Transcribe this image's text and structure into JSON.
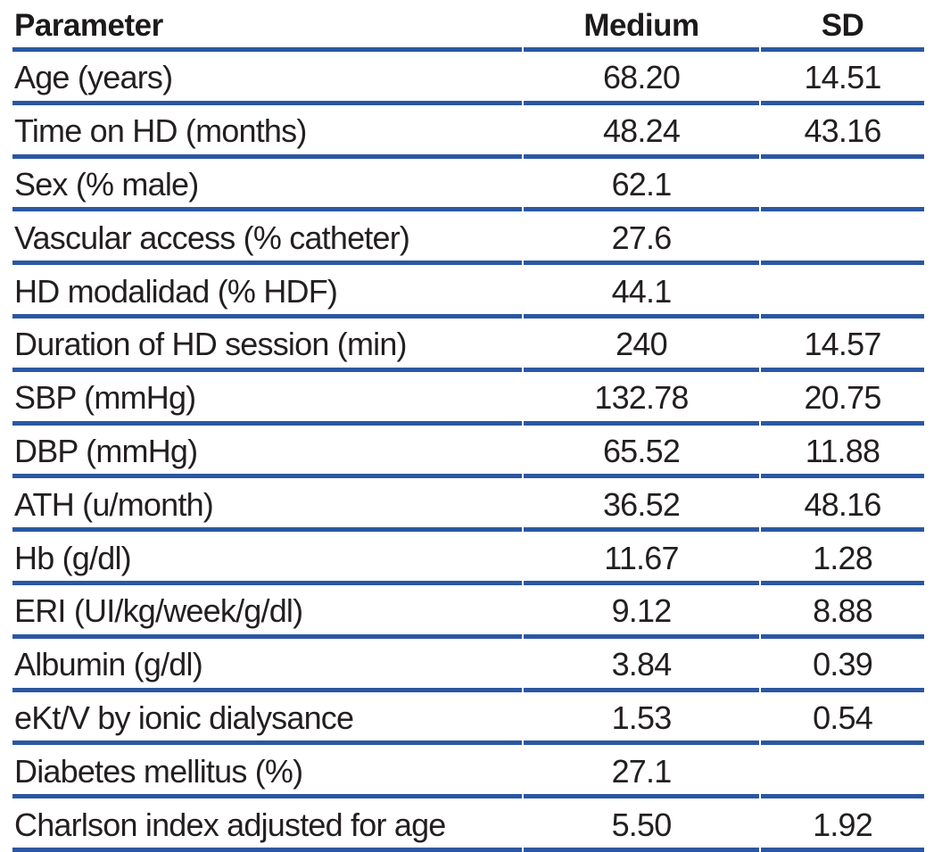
{
  "table": {
    "columns": {
      "parameter": "Parameter",
      "medium": "Medium",
      "sd": "SD"
    },
    "rows": [
      {
        "parameter": "Age (years)",
        "medium": "68.20",
        "sd": "14.51"
      },
      {
        "parameter": "Time on HD (months)",
        "medium": "48.24",
        "sd": "43.16"
      },
      {
        "parameter": "Sex (% male)",
        "medium": "62.1",
        "sd": ""
      },
      {
        "parameter": "Vascular access (% catheter)",
        "medium": "27.6",
        "sd": ""
      },
      {
        "parameter": "HD modalidad (% HDF)",
        "medium": "44.1",
        "sd": ""
      },
      {
        "parameter": "Duration of HD session (min)",
        "medium": "240",
        "sd": "14.57"
      },
      {
        "parameter": "SBP (mmHg)",
        "medium": "132.78",
        "sd": "20.75"
      },
      {
        "parameter": "DBP (mmHg)",
        "medium": "65.52",
        "sd": "11.88"
      },
      {
        "parameter": "ATH (u/month)",
        "medium": "36.52",
        "sd": "48.16"
      },
      {
        "parameter": "Hb (g/dl)",
        "medium": "11.67",
        "sd": "1.28"
      },
      {
        "parameter": "ERI (UI/kg/week/g/dl)",
        "medium": "9.12",
        "sd": "8.88"
      },
      {
        "parameter": "Albumin (g/dl)",
        "medium": "3.84",
        "sd": "0.39"
      },
      {
        "parameter": "eKt/V by ionic dialysance",
        "medium": "1.53",
        "sd": "0.54"
      },
      {
        "parameter": "Diabetes mellitus (%)",
        "medium": "27.1",
        "sd": ""
      },
      {
        "parameter": "Charlson index adjusted for age",
        "medium": "5.50",
        "sd": "1.92"
      }
    ]
  },
  "colors": {
    "rule": "#2b57a1",
    "rule_highlight": "#7b97c9",
    "text": "#231f20",
    "header_text": "#1c1a1b",
    "background": "#ffffff"
  }
}
